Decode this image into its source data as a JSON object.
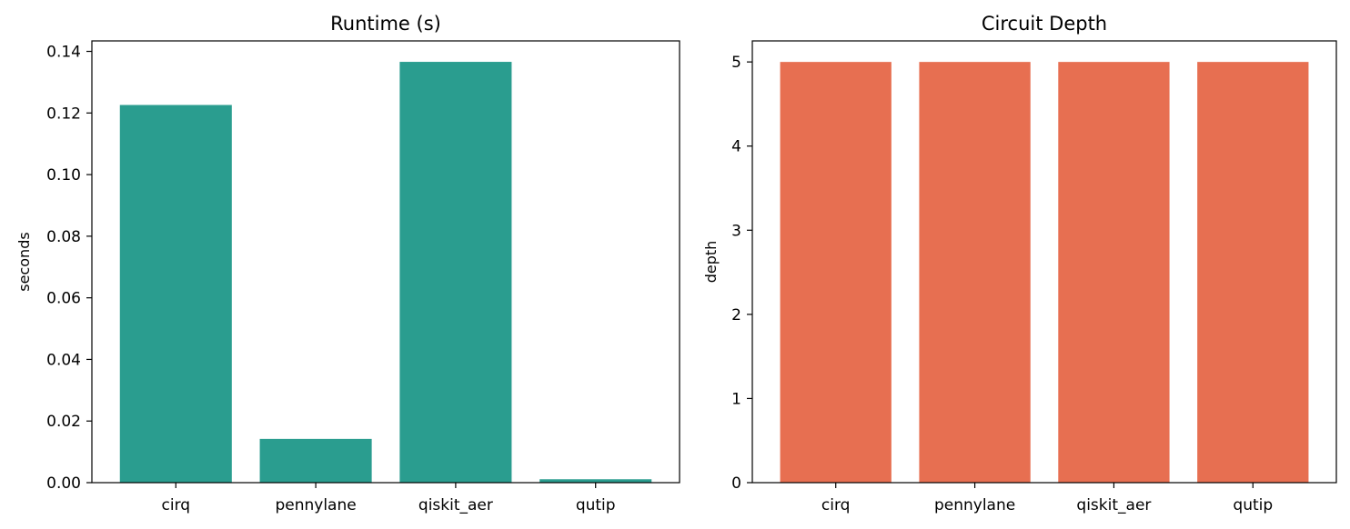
{
  "chart_data": [
    {
      "type": "bar",
      "title": "Runtime (s)",
      "xlabel": "",
      "ylabel": "seconds",
      "categories": [
        "cirq",
        "pennylane",
        "qiskit_aer",
        "qutip"
      ],
      "values": [
        0.1226,
        0.0142,
        0.1366,
        0.0011
      ],
      "ylim": [
        0,
        0.1434
      ],
      "yticks": [
        0.0,
        0.02,
        0.04,
        0.06,
        0.08,
        0.1,
        0.12,
        0.14
      ],
      "ytick_labels": [
        "0.00",
        "0.02",
        "0.04",
        "0.06",
        "0.08",
        "0.10",
        "0.12",
        "0.14"
      ],
      "color": "#2a9d8f",
      "grid": false,
      "legend": "none"
    },
    {
      "type": "bar",
      "title": "Circuit Depth",
      "xlabel": "",
      "ylabel": "depth",
      "categories": [
        "cirq",
        "pennylane",
        "qiskit_aer",
        "qutip"
      ],
      "values": [
        5,
        5,
        5,
        5
      ],
      "ylim": [
        0,
        5.25
      ],
      "yticks": [
        0,
        1,
        2,
        3,
        4,
        5
      ],
      "ytick_labels": [
        "0",
        "1",
        "2",
        "3",
        "4",
        "5"
      ],
      "color": "#e76f51",
      "grid": false,
      "legend": "none"
    }
  ]
}
